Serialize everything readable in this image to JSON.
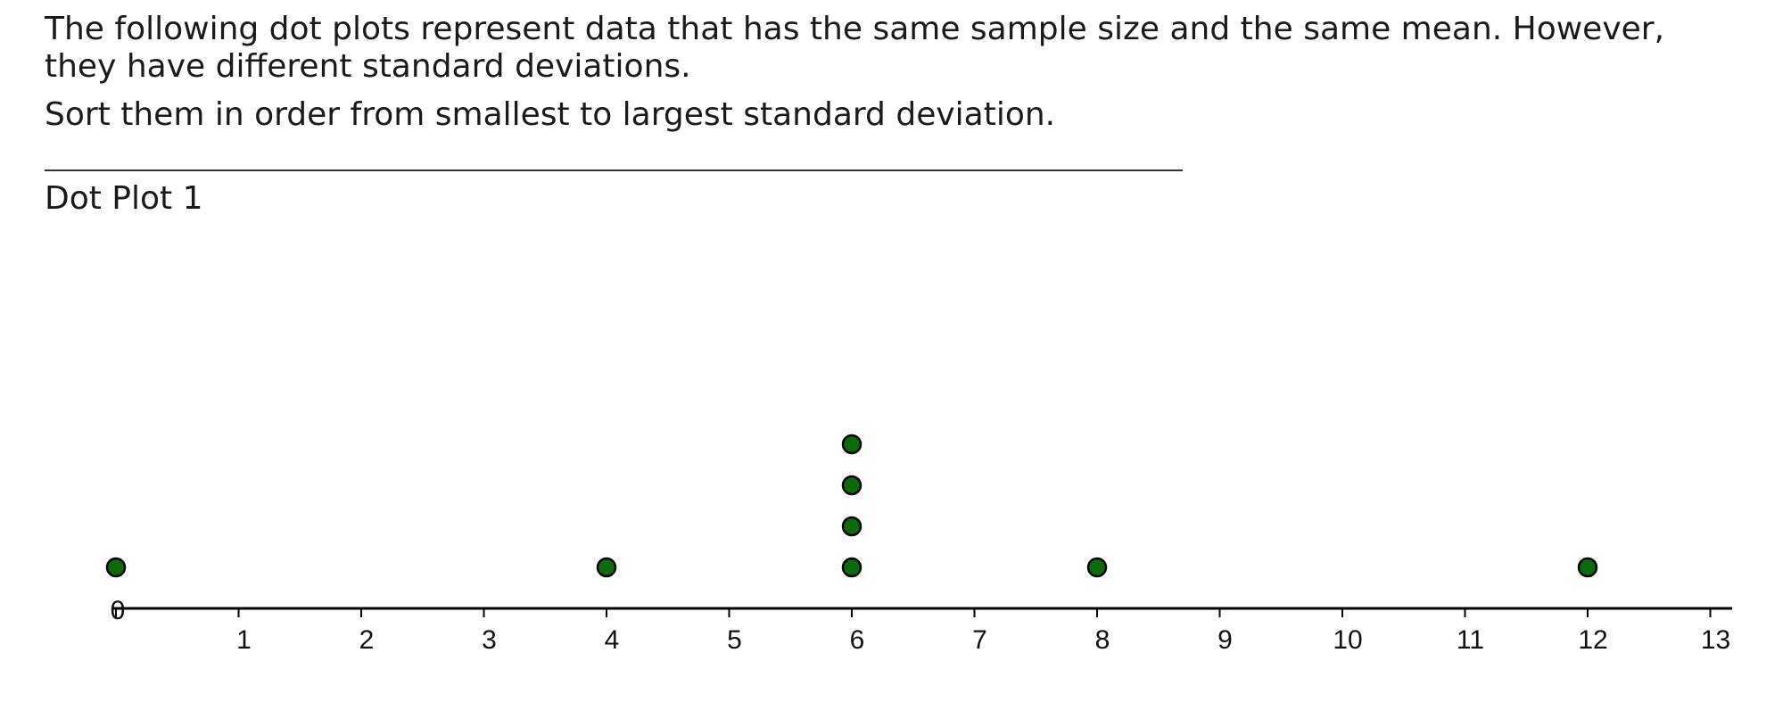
{
  "question": {
    "line1": "The following dot plots represent data that has the same sample size and the same mean. However, they have different standard deviations.",
    "line2": "Sort them in order from smallest to largest standard deviation."
  },
  "plot_title": "Dot Plot 1",
  "chart_data": {
    "type": "scatter",
    "title": "Dot Plot 1",
    "xlabel": "",
    "ylabel": "",
    "xlim": [
      0,
      13
    ],
    "x_ticks": [
      "0",
      "1",
      "2",
      "3",
      "4",
      "5",
      "6",
      "7",
      "8",
      "9",
      "10",
      "11",
      "12",
      "13"
    ],
    "values": [
      0,
      4,
      6,
      6,
      6,
      6,
      8,
      12
    ],
    "point_color": "#0b6b0b",
    "grid": false
  }
}
